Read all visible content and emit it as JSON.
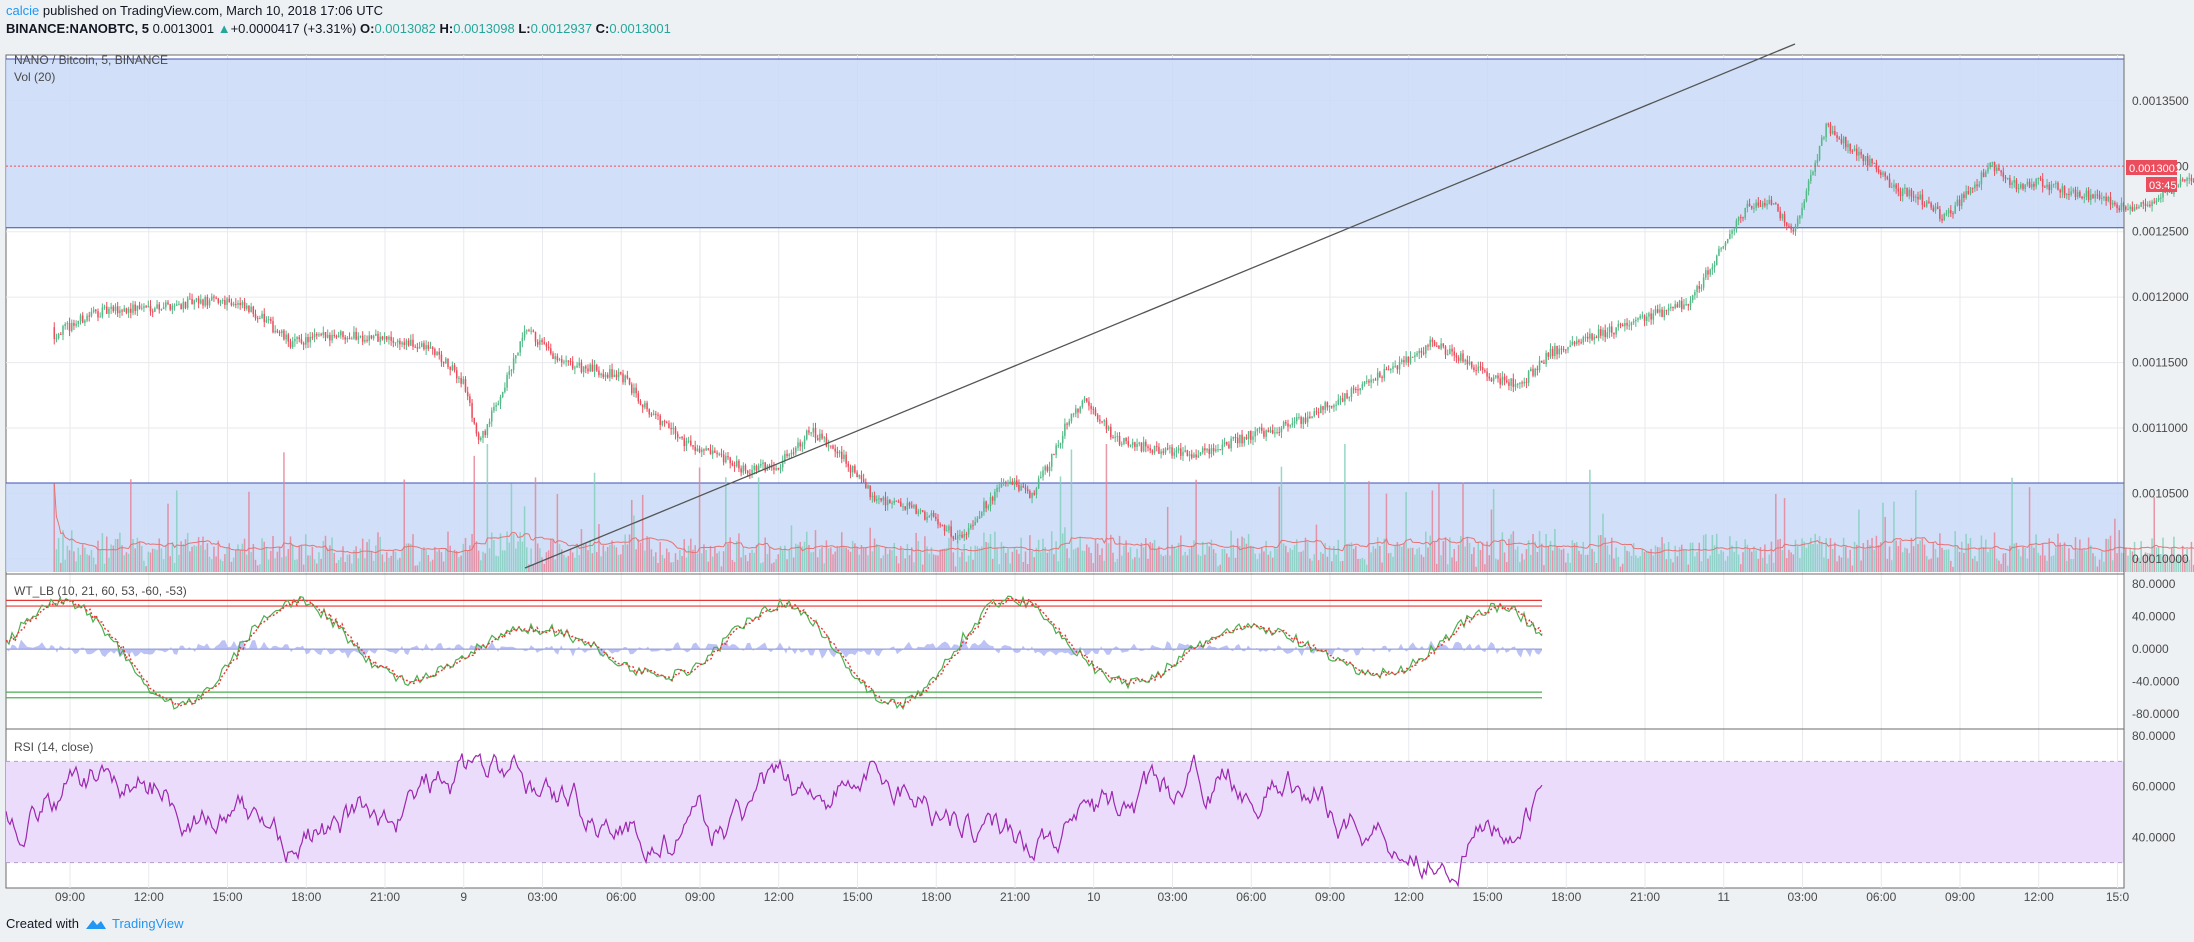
{
  "header": {
    "author": "calcie",
    "published": " published on TradingView.com, March 10, 2018 17:06 UTC",
    "symbol": "BINANCE:NANOBTC, 5",
    "last": "0.0013001",
    "change_arrow": "▲",
    "change": "+0.0000417 (+3.31%)",
    "o_label": "O:",
    "o_value": "0.0013082",
    "h_label": "H:",
    "h_value": "0.0013098",
    "l_label": "L:",
    "l_value": "0.0012937",
    "c_label": "C:",
    "c_value": "0.0013001"
  },
  "panes": {
    "main_title": "NANO / Bitcoin, 5, BINANCE",
    "volume_title": "Vol (20)",
    "wt_title": "WT_LB (10, 21, 60, 53, -60, -53)",
    "rsi_title": "RSI (14, close)"
  },
  "price_tag": {
    "value": "0.0013001",
    "countdown": "03:45"
  },
  "footer": {
    "created_with": "Created with",
    "brand": "TradingView"
  },
  "colors": {
    "up": "#53b987",
    "down": "#eb4d5c",
    "band": "#c9daf7",
    "band_line": "#3f51b5",
    "rsi_band": "#ecdcfb",
    "rsi_line": "#9c27b0",
    "wt_green": "#4caf50",
    "wt_red": "#e53935",
    "wt_hist": "#9fa8f0",
    "trendline": "#555555"
  },
  "chart_data": [
    {
      "type": "candlestick",
      "title": "NANO / Bitcoin, 5, BINANCE",
      "price_axis": [
        "0.0013500",
        "0.0013000",
        "0.0012500",
        "0.0012000",
        "0.0011500",
        "0.0011000",
        "0.0010500",
        "0.0010000"
      ],
      "price_range": [
        0.00099,
        0.001385
      ],
      "time_axis": [
        "09:00",
        "12:00",
        "15:00",
        "18:00",
        "21:00",
        "9",
        "03:00",
        "06:00",
        "09:00",
        "12:00",
        "15:00",
        "18:00",
        "21:00",
        "10",
        "03:00",
        "06:00",
        "09:00",
        "12:00",
        "15:00",
        "18:00",
        "21:00",
        "11",
        "03:00",
        "06:00",
        "09:00",
        "12:00",
        "15:0"
      ],
      "close_path": [
        [
          0,
          0.001178
        ],
        [
          0.3,
          0.001188
        ],
        [
          0.9,
          0.001192
        ],
        [
          1.5,
          0.001195
        ],
        [
          2.0,
          0.001198
        ],
        [
          2.4,
          0.001186
        ],
        [
          2.8,
          0.001165
        ],
        [
          3.4,
          0.001172
        ],
        [
          4.0,
          0.001168
        ],
        [
          4.6,
          0.00116
        ],
        [
          5.0,
          0.001135
        ],
        [
          5.2,
          0.001088
        ],
        [
          5.5,
          0.00113
        ],
        [
          5.8,
          0.001175
        ],
        [
          6.2,
          0.00115
        ],
        [
          6.6,
          0.001145
        ],
        [
          7.0,
          0.00114
        ],
        [
          7.4,
          0.00111
        ],
        [
          7.8,
          0.00109
        ],
        [
          8.2,
          0.001078
        ],
        [
          8.6,
          0.001068
        ],
        [
          9.0,
          0.001072
        ],
        [
          9.4,
          0.001098
        ],
        [
          9.8,
          0.001078
        ],
        [
          10.2,
          0.001048
        ],
        [
          10.6,
          0.00104
        ],
        [
          11.0,
          0.00103
        ],
        [
          11.3,
          0.001015
        ],
        [
          11.6,
          0.00104
        ],
        [
          11.9,
          0.00106
        ],
        [
          12.2,
          0.001048
        ],
        [
          12.5,
          0.00108
        ],
        [
          12.7,
          0.00111
        ],
        [
          12.9,
          0.00112
        ],
        [
          13.3,
          0.00109
        ],
        [
          13.7,
          0.001085
        ],
        [
          14.2,
          0.00108
        ],
        [
          14.6,
          0.001085
        ],
        [
          15.0,
          0.001095
        ],
        [
          15.5,
          0.001102
        ],
        [
          16.0,
          0.001118
        ],
        [
          16.5,
          0.001135
        ],
        [
          17.0,
          0.001152
        ],
        [
          17.3,
          0.001165
        ],
        [
          17.7,
          0.001152
        ],
        [
          18.0,
          0.00114
        ],
        [
          18.4,
          0.001132
        ],
        [
          18.8,
          0.001158
        ],
        [
          19.2,
          0.001168
        ],
        [
          19.6,
          0.001175
        ],
        [
          20.0,
          0.001185
        ],
        [
          20.3,
          0.00119
        ],
        [
          20.6,
          0.001198
        ],
        [
          20.8,
          0.00122
        ],
        [
          21.0,
          0.00124
        ],
        [
          21.3,
          0.00127
        ],
        [
          21.6,
          0.001272
        ],
        [
          21.9,
          0.00125
        ],
        [
          22.1,
          0.00129
        ],
        [
          22.3,
          0.00133
        ],
        [
          22.6,
          0.001315
        ],
        [
          22.9,
          0.0013
        ],
        [
          23.2,
          0.001282
        ],
        [
          23.5,
          0.001275
        ],
        [
          23.8,
          0.00126
        ],
        [
          24.1,
          0.00128
        ],
        [
          24.4,
          0.0013
        ],
        [
          24.7,
          0.001285
        ],
        [
          25.0,
          0.001288
        ],
        [
          25.4,
          0.00128
        ],
        [
          25.8,
          0.001275
        ],
        [
          26.1,
          0.001268
        ],
        [
          26.5,
          0.001275
        ],
        [
          26.9,
          0.00129
        ],
        [
          27.3,
          0.001285
        ],
        [
          27.7,
          0.001295
        ],
        [
          28.0,
          0.0013
        ],
        [
          28.3,
          0.001318
        ],
        [
          28.7,
          0.00131
        ],
        [
          29.1,
          0.001295
        ],
        [
          29.5,
          0.0013
        ],
        [
          29.9,
          0.001305
        ],
        [
          30.2,
          0.00132
        ],
        [
          30.5,
          0.00135
        ],
        [
          30.7,
          0.00137
        ],
        [
          30.9,
          0.00136
        ],
        [
          31.1,
          0.001352
        ],
        [
          31.4,
          0.00134
        ],
        [
          31.6,
          0.001355
        ],
        [
          31.8,
          0.001318
        ],
        [
          32.0,
          0.001309
        ],
        [
          32.1,
          0.0013
        ]
      ]
    },
    {
      "type": "line",
      "title": "WT_LB (10, 21, 60, 53, -60, -53)",
      "axis": [
        "80.0000",
        "40.0000",
        "0.0000",
        "-40.0000",
        "-80.0000"
      ],
      "levels": [
        60,
        53,
        -53,
        -60
      ],
      "range": [
        -96,
        90
      ]
    },
    {
      "type": "line",
      "title": "RSI (14, close)",
      "axis": [
        "80.0000",
        "60.0000",
        "40.0000"
      ],
      "band": [
        30,
        70
      ],
      "range": [
        20,
        82
      ]
    }
  ]
}
